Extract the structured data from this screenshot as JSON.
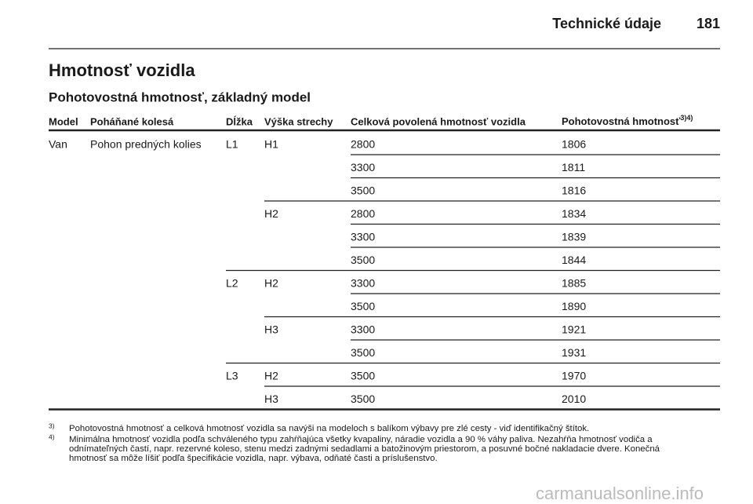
{
  "header": {
    "title": "Technické údaje",
    "page": "181"
  },
  "title": "Hmotnosť vozidla",
  "subtitle": "Pohotovostná hmotnosť, základný model",
  "table": {
    "columns": [
      "Model",
      "Poháňané kolesá",
      "Dĺžka",
      "Výška strechy",
      "Celková povolená hmotnosť vozidla",
      {
        "text": "Pohotovostná hmotnosť",
        "sup": "3)4)"
      }
    ],
    "groups": [
      {
        "model": "Van",
        "drive": "Pohon predných kolies",
        "lengths": [
          {
            "length": "L1",
            "heights": [
              {
                "height": "H1",
                "rows": [
                  [
                    2800,
                    1806
                  ],
                  [
                    3300,
                    1811
                  ],
                  [
                    3500,
                    1816
                  ]
                ]
              },
              {
                "height": "H2",
                "rows": [
                  [
                    2800,
                    1834
                  ],
                  [
                    3300,
                    1839
                  ],
                  [
                    3500,
                    1844
                  ]
                ]
              }
            ]
          },
          {
            "length": "L2",
            "heights": [
              {
                "height": "H2",
                "rows": [
                  [
                    3300,
                    1885
                  ],
                  [
                    3500,
                    1890
                  ]
                ]
              },
              {
                "height": "H3",
                "rows": [
                  [
                    3300,
                    1921
                  ],
                  [
                    3500,
                    1931
                  ]
                ]
              }
            ]
          },
          {
            "length": "L3",
            "heights": [
              {
                "height": "H2",
                "rows": [
                  [
                    3500,
                    1970
                  ]
                ]
              },
              {
                "height": "H3",
                "rows": [
                  [
                    3500,
                    2010
                  ]
                ]
              }
            ]
          }
        ]
      }
    ]
  },
  "footnotes": [
    {
      "mark": "3)",
      "lines": [
        "Pohotovostná hmotnosť a celková hmotnosť vozidla sa navýši na modeloch s balíkom výbavy pre zlé cesty - viď identifikačný štítok."
      ]
    },
    {
      "mark": "4)",
      "lines": [
        "Minimálna hmotnosť vozidla podľa schváleného typu zahŕňajúca všetky kvapaliny, náradie vozidla a 90 % váhy paliva. Nezahŕňa hmotnosť vodiča a",
        "odnímateľných častí, napr. rezervné koleso, stenu medzi zadnými sedadlami a batožinovým priestorom, a posuvné bočné nakladacie dvere. Konečná",
        "hmotnosť sa môže líšiť podľa špecifikácie vozidla, napr. výbava, odňaté časti a príslušenstvo."
      ]
    }
  ],
  "watermark": "carmanualsonline.info"
}
